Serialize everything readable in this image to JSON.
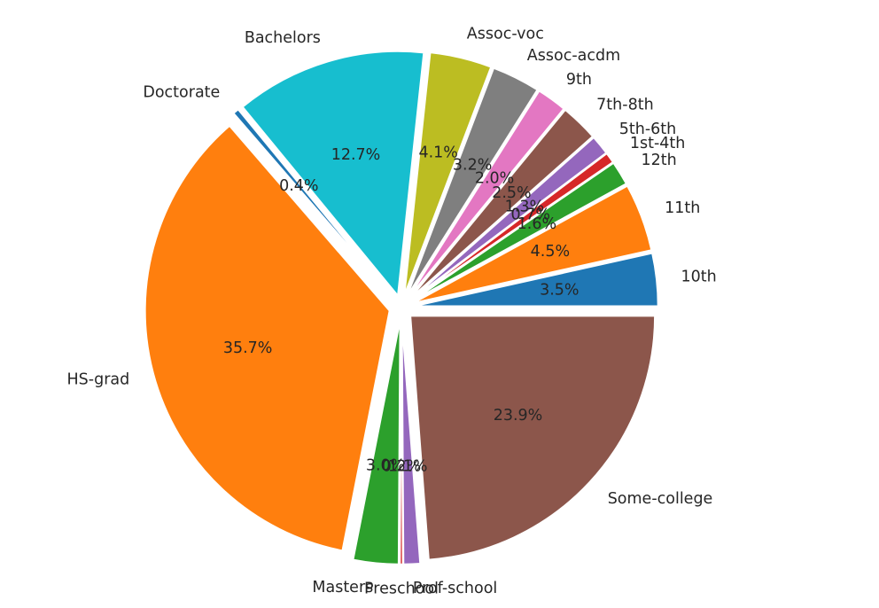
{
  "chart_data": {
    "type": "pie",
    "title": "",
    "start_angle_deg": 0,
    "direction": "counterclockwise",
    "slices": [
      {
        "label": "10th",
        "value": 3.5,
        "pct_label": "3.5%",
        "color": "#1f77b4"
      },
      {
        "label": "11th",
        "value": 4.5,
        "pct_label": "4.5%",
        "color": "#ff7f0e"
      },
      {
        "label": "12th",
        "value": 1.6,
        "pct_label": "1.6%",
        "color": "#2ca02c"
      },
      {
        "label": "1st-4th",
        "value": 0.7,
        "pct_label": "0.7%",
        "color": "#d62728"
      },
      {
        "label": "5th-6th",
        "value": 1.3,
        "pct_label": "1.3%",
        "color": "#9467bd"
      },
      {
        "label": "7th-8th",
        "value": 2.5,
        "pct_label": "2.5%",
        "color": "#8c564b"
      },
      {
        "label": "9th",
        "value": 2.0,
        "pct_label": "2.0%",
        "color": "#e377c2"
      },
      {
        "label": "Assoc-acdm",
        "value": 3.2,
        "pct_label": "3.2%",
        "color": "#7f7f7f"
      },
      {
        "label": "Assoc-voc",
        "value": 4.1,
        "pct_label": "4.1%",
        "color": "#bcbd22"
      },
      {
        "label": "Bachelors",
        "value": 12.7,
        "pct_label": "12.7%",
        "color": "#17becf"
      },
      {
        "label": "Doctorate",
        "value": 0.4,
        "pct_label": "0.4%",
        "color": "#1f77b4"
      },
      {
        "label": "HS-grad",
        "value": 35.7,
        "pct_label": "35.7%",
        "color": "#ff7f0e"
      },
      {
        "label": "Masters",
        "value": 3.0,
        "pct_label": "3.0%",
        "color": "#2ca02c"
      },
      {
        "label": "Preschool",
        "value": 0.2,
        "pct_label": "0.2%",
        "color": "#d62728"
      },
      {
        "label": "Prof-school",
        "value": 1.1,
        "pct_label": "1.1%",
        "color": "#9467bd"
      },
      {
        "label": "Some-college",
        "value": 23.9,
        "pct_label": "23.9%",
        "color": "#8c564b"
      }
    ],
    "explode_fraction": 0.05,
    "wedge_edge_color": "#ffffff",
    "legend": "none"
  }
}
